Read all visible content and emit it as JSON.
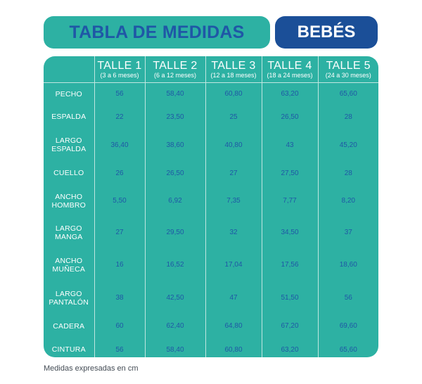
{
  "header": {
    "title": "TABLA DE MEDIDAS",
    "badge": "BEBÉS",
    "colors": {
      "teal": "#2db1a3",
      "navy": "#1b4f98",
      "value_text": "#1f57a6"
    }
  },
  "table": {
    "columns": [
      {
        "name": "TALLE 1",
        "range": "(3 a 6 meses)"
      },
      {
        "name": "TALLE 2",
        "range": "(6 a 12 meses)"
      },
      {
        "name": "TALLE 3",
        "range": "(12 a 18 meses)"
      },
      {
        "name": "TALLE 4",
        "range": "(18 a 24 meses)"
      },
      {
        "name": "TALLE 5",
        "range": "(24 a 30 meses)"
      }
    ],
    "rows": [
      {
        "label1": "PECHO",
        "label2": "",
        "values": [
          "56",
          "58,40",
          "60,80",
          "63,20",
          "65,60"
        ]
      },
      {
        "label1": "ESPALDA",
        "label2": "",
        "values": [
          "22",
          "23,50",
          "25",
          "26,50",
          "28"
        ]
      },
      {
        "label1": "LARGO",
        "label2": "ESPALDA",
        "values": [
          "36,40",
          "38,60",
          "40,80",
          "43",
          "45,20"
        ]
      },
      {
        "label1": "CUELLO",
        "label2": "",
        "values": [
          "26",
          "26,50",
          "27",
          "27,50",
          "28"
        ]
      },
      {
        "label1": "ANCHO",
        "label2": "HOMBRO",
        "values": [
          "5,50",
          "6,92",
          "7,35",
          "7,77",
          "8,20"
        ]
      },
      {
        "label1": "LARGO",
        "label2": "MANGA",
        "values": [
          "27",
          "29,50",
          "32",
          "34,50",
          "37"
        ]
      },
      {
        "label1": "ANCHO",
        "label2": "MUÑECA",
        "values": [
          "16",
          "16,52",
          "17,04",
          "17,56",
          "18,60"
        ]
      },
      {
        "label1": "LARGO",
        "label2": "PANTALÓN",
        "values": [
          "38",
          "42,50",
          "47",
          "51,50",
          "56"
        ]
      },
      {
        "label1": "CADERA",
        "label2": "",
        "values": [
          "60",
          "62,40",
          "64,80",
          "67,20",
          "69,60"
        ]
      },
      {
        "label1": "CINTURA",
        "label2": "",
        "values": [
          "56",
          "58,40",
          "60,80",
          "63,20",
          "65,60"
        ]
      }
    ]
  },
  "footer": {
    "note": "Medidas expresadas en cm"
  }
}
